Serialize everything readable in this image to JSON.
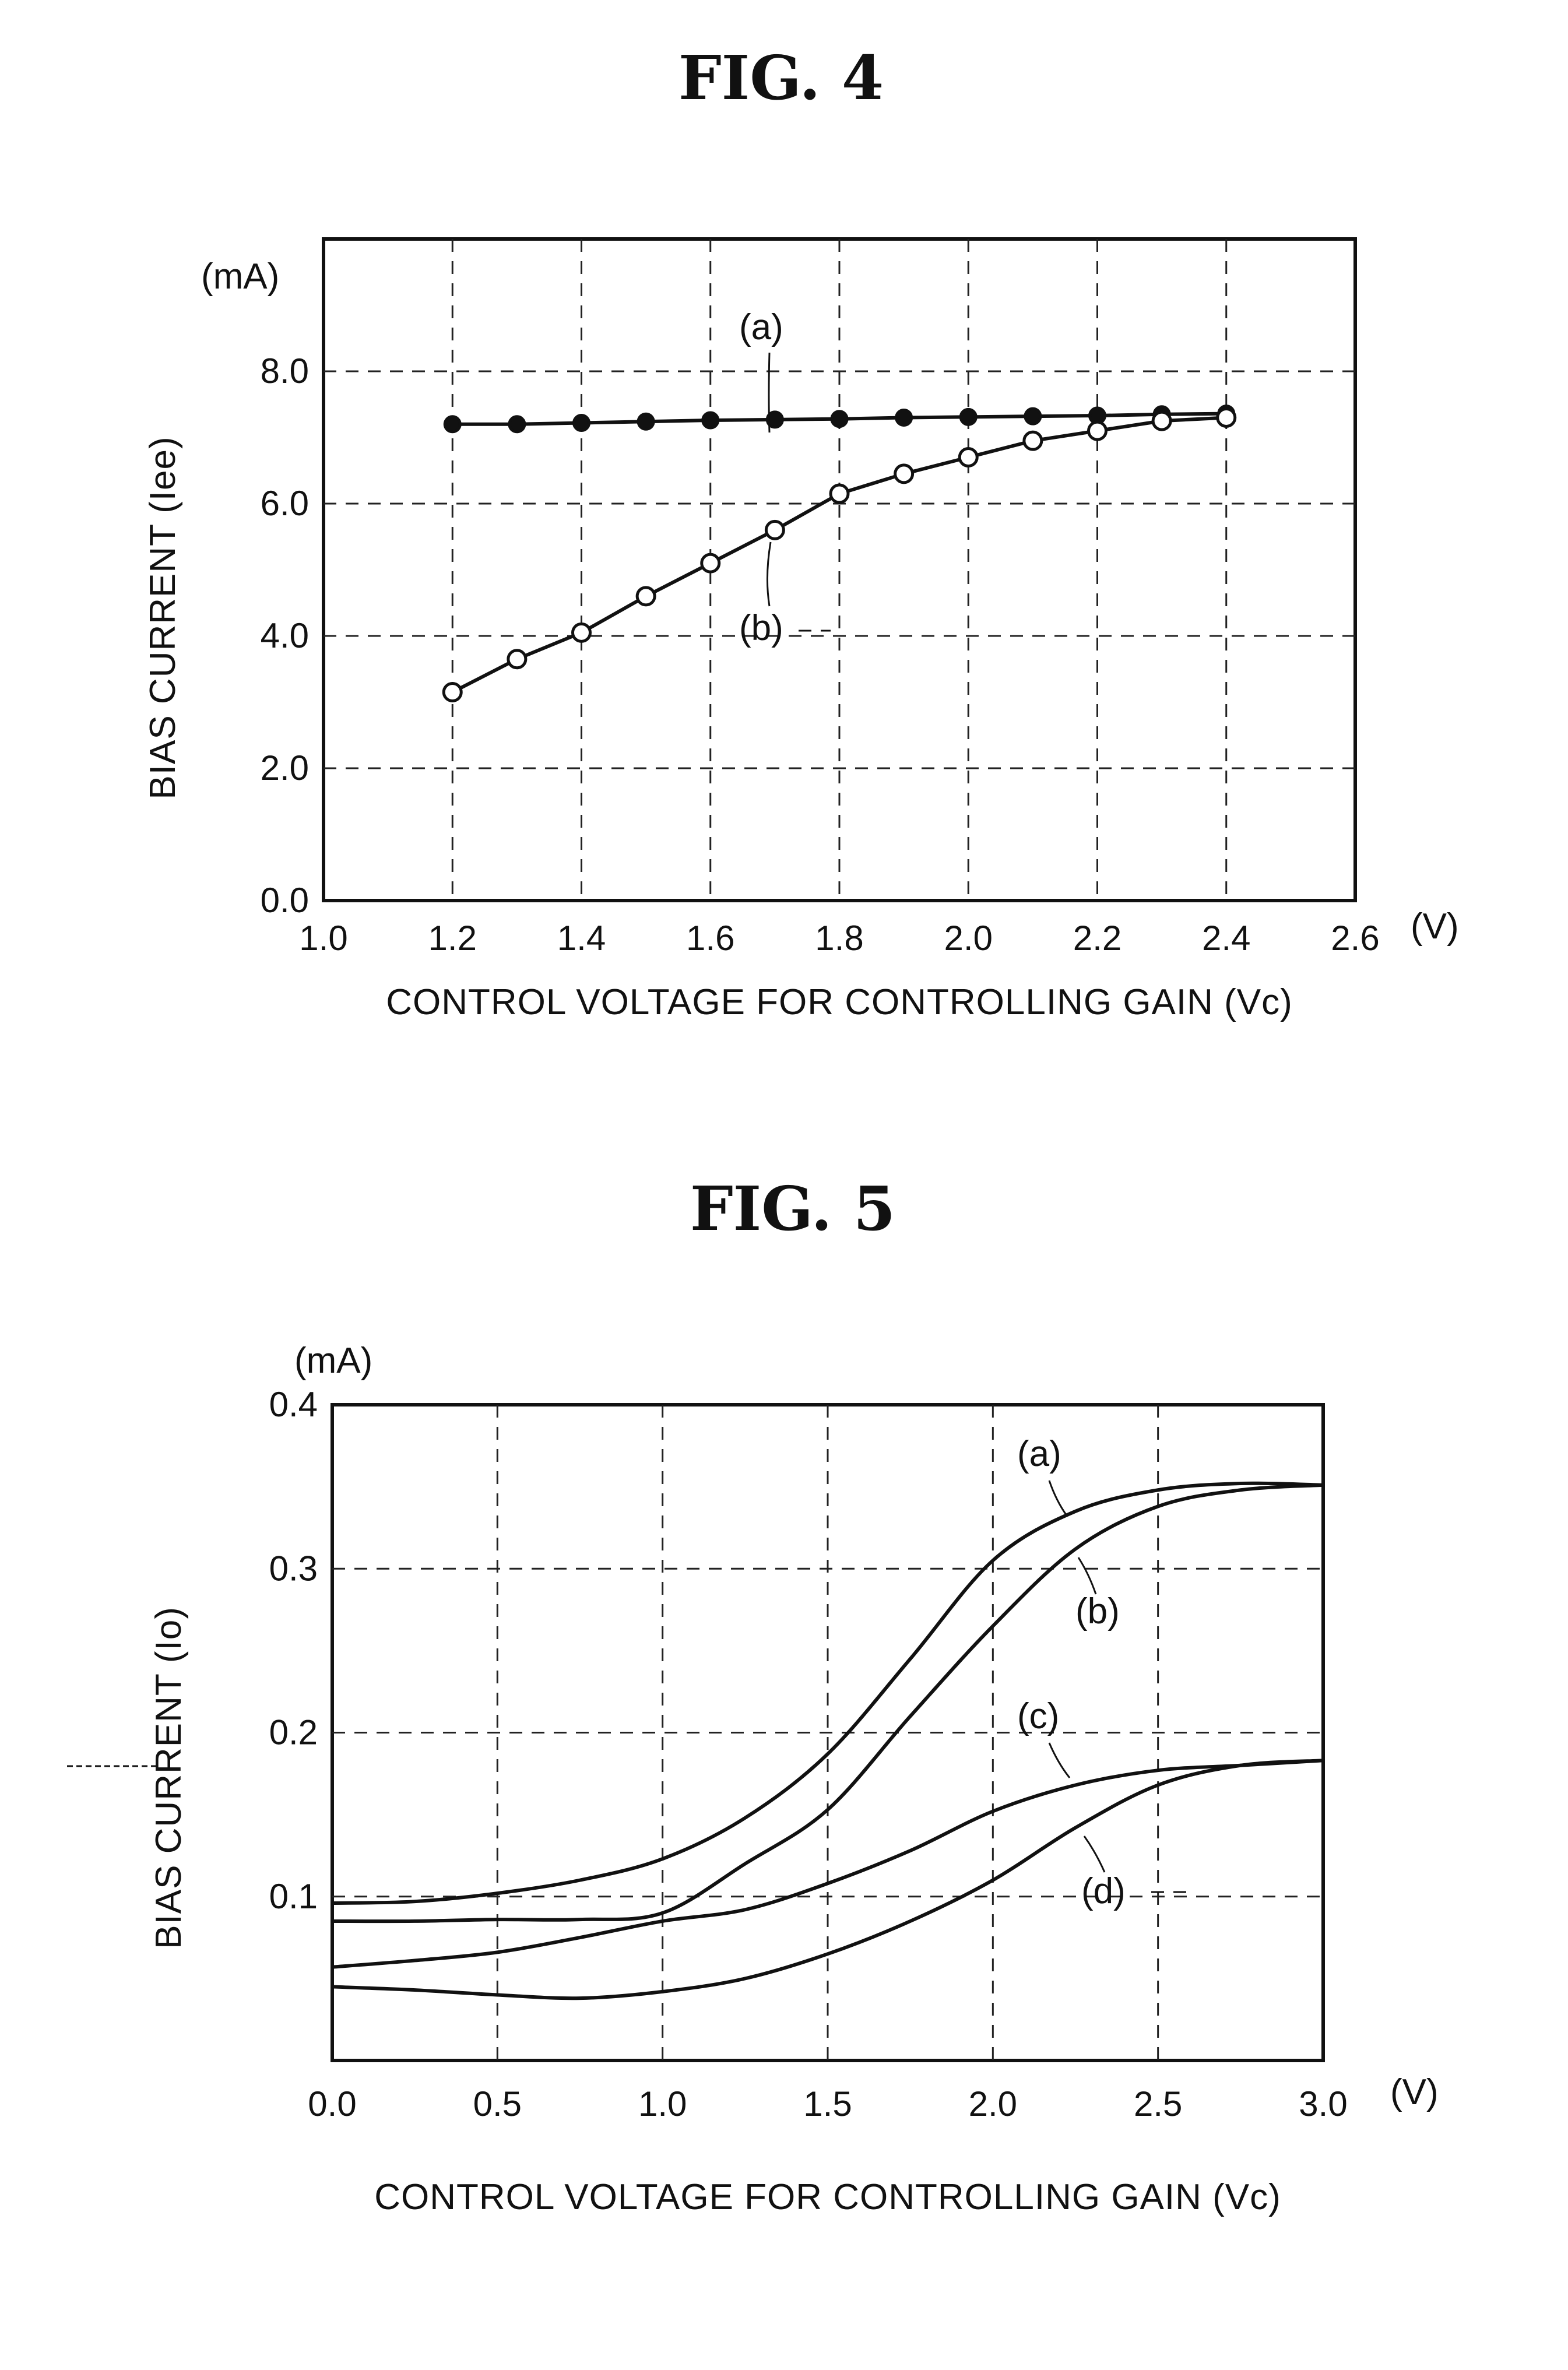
{
  "chart_data": [
    {
      "type": "line",
      "title": "FIG. 4",
      "xlabel": "CONTROL VOLTAGE FOR CONTROLLING GAIN (Vc)",
      "ylabel": "BIAS CURRENT (Iee)",
      "x_unit": "(V)",
      "y_unit": "(mA)",
      "xlim": [
        1.0,
        2.6
      ],
      "ylim": [
        0.0,
        10.0
      ],
      "x_ticks": [
        "1.0",
        "1.2",
        "1.4",
        "1.6",
        "1.8",
        "2.0",
        "2.2",
        "2.4",
        "2.6"
      ],
      "y_ticks": [
        "0.0",
        "2.0",
        "4.0",
        "6.0",
        "8.0"
      ],
      "grid": true,
      "x": [
        1.2,
        1.3,
        1.4,
        1.5,
        1.6,
        1.7,
        1.8,
        1.9,
        2.0,
        2.1,
        2.2,
        2.3,
        2.4
      ],
      "series": [
        {
          "name": "(a)",
          "marker": "filled-circle",
          "values": [
            7.2,
            7.2,
            7.22,
            7.24,
            7.26,
            7.27,
            7.28,
            7.3,
            7.31,
            7.32,
            7.33,
            7.35,
            7.36
          ]
        },
        {
          "name": "(b)",
          "marker": "open-circle",
          "values": [
            3.15,
            3.65,
            4.05,
            4.6,
            5.1,
            5.6,
            6.15,
            6.45,
            6.7,
            6.95,
            7.1,
            7.25,
            7.3
          ]
        }
      ]
    },
    {
      "type": "line",
      "title": "FIG. 5",
      "xlabel": "CONTROL VOLTAGE FOR CONTROLLING GAIN (Vc)",
      "ylabel": "BIAS CURRENT (Io)",
      "x_unit": "(V)",
      "y_unit": "(mA)",
      "xlim": [
        0.0,
        3.0
      ],
      "ylim": [
        0.0,
        0.4
      ],
      "x_ticks": [
        "0.0",
        "0.5",
        "1.0",
        "1.5",
        "2.0",
        "2.5",
        "3.0"
      ],
      "y_ticks": [
        "0.1",
        "0.2",
        "0.3",
        "0.4"
      ],
      "grid": true,
      "x": [
        0.0,
        0.25,
        0.5,
        0.75,
        1.0,
        1.25,
        1.5,
        1.75,
        2.0,
        2.25,
        2.5,
        2.75,
        3.0
      ],
      "series": [
        {
          "name": "(a)",
          "values": [
            0.096,
            0.097,
            0.102,
            0.11,
            0.123,
            0.148,
            0.187,
            0.245,
            0.305,
            0.335,
            0.348,
            0.352,
            0.351
          ]
        },
        {
          "name": "(b)",
          "values": [
            0.085,
            0.085,
            0.086,
            0.086,
            0.09,
            0.12,
            0.153,
            0.21,
            0.265,
            0.312,
            0.338,
            0.348,
            0.351
          ]
        },
        {
          "name": "(c)",
          "values": [
            0.057,
            0.061,
            0.066,
            0.075,
            0.085,
            0.092,
            0.108,
            0.128,
            0.152,
            0.168,
            0.177,
            0.18,
            0.183
          ]
        },
        {
          "name": "(d)",
          "values": [
            0.045,
            0.043,
            0.04,
            0.038,
            0.042,
            0.05,
            0.065,
            0.085,
            0.11,
            0.142,
            0.168,
            0.18,
            0.183
          ]
        }
      ]
    }
  ]
}
